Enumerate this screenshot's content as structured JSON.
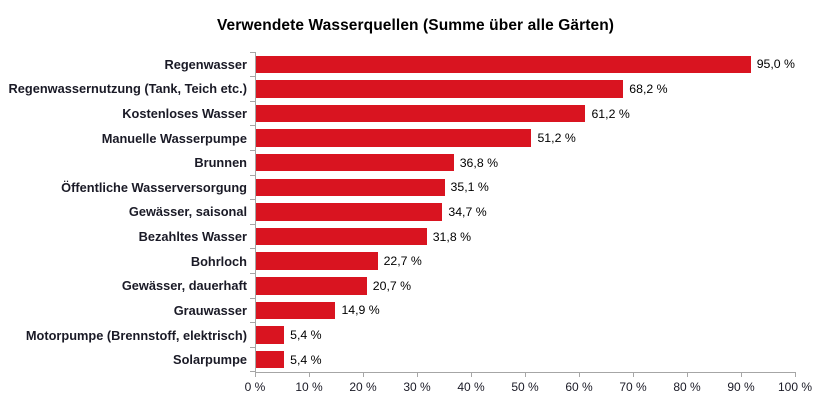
{
  "chart_data": {
    "type": "bar",
    "orientation": "horizontal",
    "title": "Verwendete Wasserquellen (Summe über alle Gärten)",
    "categories": [
      "Regenwasser",
      "Regenwassernutzung (Tank, Teich etc.)",
      "Kostenloses Wasser",
      "Manuelle Wasserpumpe",
      "Brunnen",
      "Öffentliche Wasserversorgung",
      "Gewässer, saisonal",
      "Bezahltes Wasser",
      "Bohrloch",
      "Gewässer, dauerhaft",
      "Grauwasser",
      "Motorpumpe (Brennstoff, elektrisch)",
      "Solarpumpe"
    ],
    "values": [
      95.0,
      68.2,
      61.2,
      51.2,
      36.8,
      35.1,
      34.7,
      31.8,
      22.7,
      20.7,
      14.9,
      5.4,
      5.4
    ],
    "value_labels": [
      "95,0 %",
      "68,2 %",
      "61,2 %",
      "51,2 %",
      "36,8 %",
      "35,1 %",
      "34,7 %",
      "31,8 %",
      "22,7 %",
      "20,7 %",
      "14,9 %",
      "5,4 %",
      "5,4 %"
    ],
    "xlabel": "",
    "ylabel": "",
    "xlim": [
      0,
      100
    ],
    "x_tick_values": [
      0,
      10,
      20,
      30,
      40,
      50,
      60,
      70,
      80,
      90,
      100
    ],
    "x_tick_labels": [
      "0 %",
      "10 %",
      "20 %",
      "30 %",
      "40 %",
      "50 %",
      "60 %",
      "70 %",
      "80 %",
      "90 %",
      "100 %"
    ],
    "grid": false,
    "legend": false,
    "colors": {
      "bar": "#d91420",
      "axis": "#a6a6a6",
      "category_label": "#1a1a26",
      "value_label": "#000000",
      "tick_label": "#1a1a26",
      "title": "#000000",
      "background": "#ffffff"
    }
  }
}
